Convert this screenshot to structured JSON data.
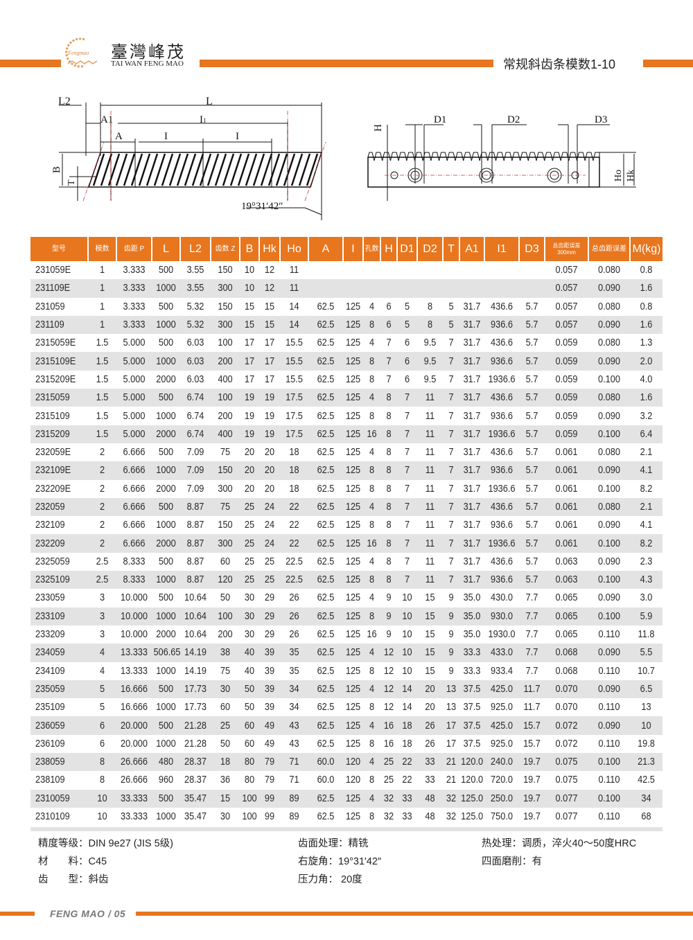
{
  "header": {
    "brand_cn": "臺灣峰茂",
    "brand_en": "TAI WAN FENG MAO",
    "logo_text": "Fengmao",
    "title": "常规斜齿条模数1-10",
    "accent_color": "#E8761E"
  },
  "diagram": {
    "left_labels": {
      "L2": "L2",
      "L": "L",
      "A1": "A1",
      "I1": "I",
      "I1_sub": "1",
      "A": "A",
      "I": "I",
      "B": "B",
      "T": "T",
      "angle": "19°31′42″"
    },
    "right_labels": {
      "H": "H",
      "D1": "D1",
      "D2": "D2",
      "D3": "D3",
      "Ho": "Ho",
      "Hk": "Hk"
    }
  },
  "table": {
    "columns": [
      "型号",
      "模数",
      "齿距 P",
      "L",
      "L2",
      "齿数 Z",
      "B",
      "Hk",
      "Ho",
      "A",
      "I",
      "孔数",
      "H",
      "D1",
      "D2",
      "T",
      "A1",
      "I1",
      "D3",
      "总齿距误差 300mm",
      "总齿距误差",
      "M(kg)"
    ],
    "rows": [
      [
        "231059E",
        "1",
        "3.333",
        "500",
        "3.55",
        "150",
        "10",
        "12",
        "11",
        "",
        "",
        "",
        "",
        "",
        "",
        "",
        "",
        "",
        "",
        "0.057",
        "0.080",
        "0.8"
      ],
      [
        "231109E",
        "1",
        "3.333",
        "1000",
        "3.55",
        "300",
        "10",
        "12",
        "11",
        "",
        "",
        "",
        "",
        "",
        "",
        "",
        "",
        "",
        "",
        "0.057",
        "0.090",
        "1.6"
      ],
      [
        "231059",
        "1",
        "3.333",
        "500",
        "5.32",
        "150",
        "15",
        "15",
        "14",
        "62.5",
        "125",
        "4",
        "6",
        "5",
        "8",
        "5",
        "31.7",
        "436.6",
        "5.7",
        "0.057",
        "0.080",
        "0.8"
      ],
      [
        "231109",
        "1",
        "3.333",
        "1000",
        "5.32",
        "300",
        "15",
        "15",
        "14",
        "62.5",
        "125",
        "8",
        "6",
        "5",
        "8",
        "5",
        "31.7",
        "936.6",
        "5.7",
        "0.057",
        "0.090",
        "1.6"
      ],
      [
        "2315059E",
        "1.5",
        "5.000",
        "500",
        "6.03",
        "100",
        "17",
        "17",
        "15.5",
        "62.5",
        "125",
        "4",
        "7",
        "6",
        "9.5",
        "7",
        "31.7",
        "436.6",
        "5.7",
        "0.059",
        "0.080",
        "1.3"
      ],
      [
        "2315109E",
        "1.5",
        "5.000",
        "1000",
        "6.03",
        "200",
        "17",
        "17",
        "15.5",
        "62.5",
        "125",
        "8",
        "7",
        "6",
        "9.5",
        "7",
        "31.7",
        "936.6",
        "5.7",
        "0.059",
        "0.090",
        "2.0"
      ],
      [
        "2315209E",
        "1.5",
        "5.000",
        "2000",
        "6.03",
        "400",
        "17",
        "17",
        "15.5",
        "62.5",
        "125",
        "8",
        "7",
        "6",
        "9.5",
        "7",
        "31.7",
        "1936.6",
        "5.7",
        "0.059",
        "0.100",
        "4.0"
      ],
      [
        "2315059",
        "1.5",
        "5.000",
        "500",
        "6.74",
        "100",
        "19",
        "19",
        "17.5",
        "62.5",
        "125",
        "4",
        "8",
        "7",
        "11",
        "7",
        "31.7",
        "436.6",
        "5.7",
        "0.059",
        "0.080",
        "1.6"
      ],
      [
        "2315109",
        "1.5",
        "5.000",
        "1000",
        "6.74",
        "200",
        "19",
        "19",
        "17.5",
        "62.5",
        "125",
        "8",
        "8",
        "7",
        "11",
        "7",
        "31.7",
        "936.6",
        "5.7",
        "0.059",
        "0.090",
        "3.2"
      ],
      [
        "2315209",
        "1.5",
        "5.000",
        "2000",
        "6.74",
        "400",
        "19",
        "19",
        "17.5",
        "62.5",
        "125",
        "16",
        "8",
        "7",
        "11",
        "7",
        "31.7",
        "1936.6",
        "5.7",
        "0.059",
        "0.100",
        "6.4"
      ],
      [
        "232059E",
        "2",
        "6.666",
        "500",
        "7.09",
        "75",
        "20",
        "20",
        "18",
        "62.5",
        "125",
        "4",
        "8",
        "7",
        "11",
        "7",
        "31.7",
        "436.6",
        "5.7",
        "0.061",
        "0.080",
        "2.1"
      ],
      [
        "232109E",
        "2",
        "6.666",
        "1000",
        "7.09",
        "150",
        "20",
        "20",
        "18",
        "62.5",
        "125",
        "8",
        "8",
        "7",
        "11",
        "7",
        "31.7",
        "936.6",
        "5.7",
        "0.061",
        "0.090",
        "4.1"
      ],
      [
        "232209E",
        "2",
        "6.666",
        "2000",
        "7.09",
        "300",
        "20",
        "20",
        "18",
        "62.5",
        "125",
        "8",
        "8",
        "7",
        "11",
        "7",
        "31.7",
        "1936.6",
        "5.7",
        "0.061",
        "0.100",
        "8.2"
      ],
      [
        "232059",
        "2",
        "6.666",
        "500",
        "8.87",
        "75",
        "25",
        "24",
        "22",
        "62.5",
        "125",
        "4",
        "8",
        "7",
        "11",
        "7",
        "31.7",
        "436.6",
        "5.7",
        "0.061",
        "0.080",
        "2.1"
      ],
      [
        "232109",
        "2",
        "6.666",
        "1000",
        "8.87",
        "150",
        "25",
        "24",
        "22",
        "62.5",
        "125",
        "8",
        "8",
        "7",
        "11",
        "7",
        "31.7",
        "936.6",
        "5.7",
        "0.061",
        "0.090",
        "4.1"
      ],
      [
        "232209",
        "2",
        "6.666",
        "2000",
        "8.87",
        "300",
        "25",
        "24",
        "22",
        "62.5",
        "125",
        "16",
        "8",
        "7",
        "11",
        "7",
        "31.7",
        "1936.6",
        "5.7",
        "0.061",
        "0.100",
        "8.2"
      ],
      [
        "2325059",
        "2.5",
        "8.333",
        "500",
        "8.87",
        "60",
        "25",
        "25",
        "22.5",
        "62.5",
        "125",
        "4",
        "8",
        "7",
        "11",
        "7",
        "31.7",
        "436.6",
        "5.7",
        "0.063",
        "0.090",
        "2.3"
      ],
      [
        "2325109",
        "2.5",
        "8.333",
        "1000",
        "8.87",
        "120",
        "25",
        "25",
        "22.5",
        "62.5",
        "125",
        "8",
        "8",
        "7",
        "11",
        "7",
        "31.7",
        "936.6",
        "5.7",
        "0.063",
        "0.100",
        "4.3"
      ],
      [
        "233059",
        "3",
        "10.000",
        "500",
        "10.64",
        "50",
        "30",
        "29",
        "26",
        "62.5",
        "125",
        "4",
        "9",
        "10",
        "15",
        "9",
        "35.0",
        "430.0",
        "7.7",
        "0.065",
        "0.090",
        "3.0"
      ],
      [
        "233109",
        "3",
        "10.000",
        "1000",
        "10.64",
        "100",
        "30",
        "29",
        "26",
        "62.5",
        "125",
        "8",
        "9",
        "10",
        "15",
        "9",
        "35.0",
        "930.0",
        "7.7",
        "0.065",
        "0.100",
        "5.9"
      ],
      [
        "233209",
        "3",
        "10.000",
        "2000",
        "10.64",
        "200",
        "30",
        "29",
        "26",
        "62.5",
        "125",
        "16",
        "9",
        "10",
        "15",
        "9",
        "35.0",
        "1930.0",
        "7.7",
        "0.065",
        "0.110",
        "11.8"
      ],
      [
        "234059",
        "4",
        "13.333",
        "506.65",
        "14.19",
        "38",
        "40",
        "39",
        "35",
        "62.5",
        "125",
        "4",
        "12",
        "10",
        "15",
        "9",
        "33.3",
        "433.0",
        "7.7",
        "0.068",
        "0.090",
        "5.5"
      ],
      [
        "234109",
        "4",
        "13.333",
        "1000",
        "14.19",
        "75",
        "40",
        "39",
        "35",
        "62.5",
        "125",
        "8",
        "12",
        "10",
        "15",
        "9",
        "33.3",
        "933.4",
        "7.7",
        "0.068",
        "0.110",
        "10.7"
      ],
      [
        "235059",
        "5",
        "16.666",
        "500",
        "17.73",
        "30",
        "50",
        "39",
        "34",
        "62.5",
        "125",
        "4",
        "12",
        "14",
        "20",
        "13",
        "37.5",
        "425.0",
        "11.7",
        "0.070",
        "0.090",
        "6.5"
      ],
      [
        "235109",
        "5",
        "16.666",
        "1000",
        "17.73",
        "60",
        "50",
        "39",
        "34",
        "62.5",
        "125",
        "8",
        "12",
        "14",
        "20",
        "13",
        "37.5",
        "925.0",
        "11.7",
        "0.070",
        "0.110",
        "13"
      ],
      [
        "236059",
        "6",
        "20.000",
        "500",
        "21.28",
        "25",
        "60",
        "49",
        "43",
        "62.5",
        "125",
        "4",
        "16",
        "18",
        "26",
        "17",
        "37.5",
        "425.0",
        "15.7",
        "0.072",
        "0.090",
        "10"
      ],
      [
        "236109",
        "6",
        "20.000",
        "1000",
        "21.28",
        "50",
        "60",
        "49",
        "43",
        "62.5",
        "125",
        "8",
        "16",
        "18",
        "26",
        "17",
        "37.5",
        "925.0",
        "15.7",
        "0.072",
        "0.110",
        "19.8"
      ],
      [
        "238059",
        "8",
        "26.666",
        "480",
        "28.37",
        "18",
        "80",
        "79",
        "71",
        "60.0",
        "120",
        "4",
        "25",
        "22",
        "33",
        "21",
        "120.0",
        "240.0",
        "19.7",
        "0.075",
        "0.100",
        "21.3"
      ],
      [
        "238109",
        "8",
        "26.666",
        "960",
        "28.37",
        "36",
        "80",
        "79",
        "71",
        "60.0",
        "120",
        "8",
        "25",
        "22",
        "33",
        "21",
        "120.0",
        "720.0",
        "19.7",
        "0.075",
        "0.110",
        "42.5"
      ],
      [
        "2310059",
        "10",
        "33.333",
        "500",
        "35.47",
        "15",
        "100",
        "99",
        "89",
        "62.5",
        "125",
        "4",
        "32",
        "33",
        "48",
        "32",
        "125.0",
        "250.0",
        "19.7",
        "0.077",
        "0.100",
        "34"
      ],
      [
        "2310109",
        "10",
        "33.333",
        "1000",
        "35.47",
        "30",
        "100",
        "99",
        "89",
        "62.5",
        "125",
        "8",
        "32",
        "33",
        "48",
        "32",
        "125.0",
        "750.0",
        "19.7",
        "0.077",
        "0.110",
        "68"
      ]
    ]
  },
  "notes": {
    "precision": "精度等级：DIN 9e27 (JIS 5级)",
    "material": "材　　料：C45",
    "tooth_type": "齿　　型：斜齿",
    "surface": "齿面处理：精铣",
    "helix": "右旋角：19°31′42″",
    "pressure": "压力角： 20度",
    "heat": "热处理：调质，淬火40～50度HRC",
    "grinding": "四面磨削：有"
  },
  "footer": {
    "text": "FENG MAO / 05"
  }
}
